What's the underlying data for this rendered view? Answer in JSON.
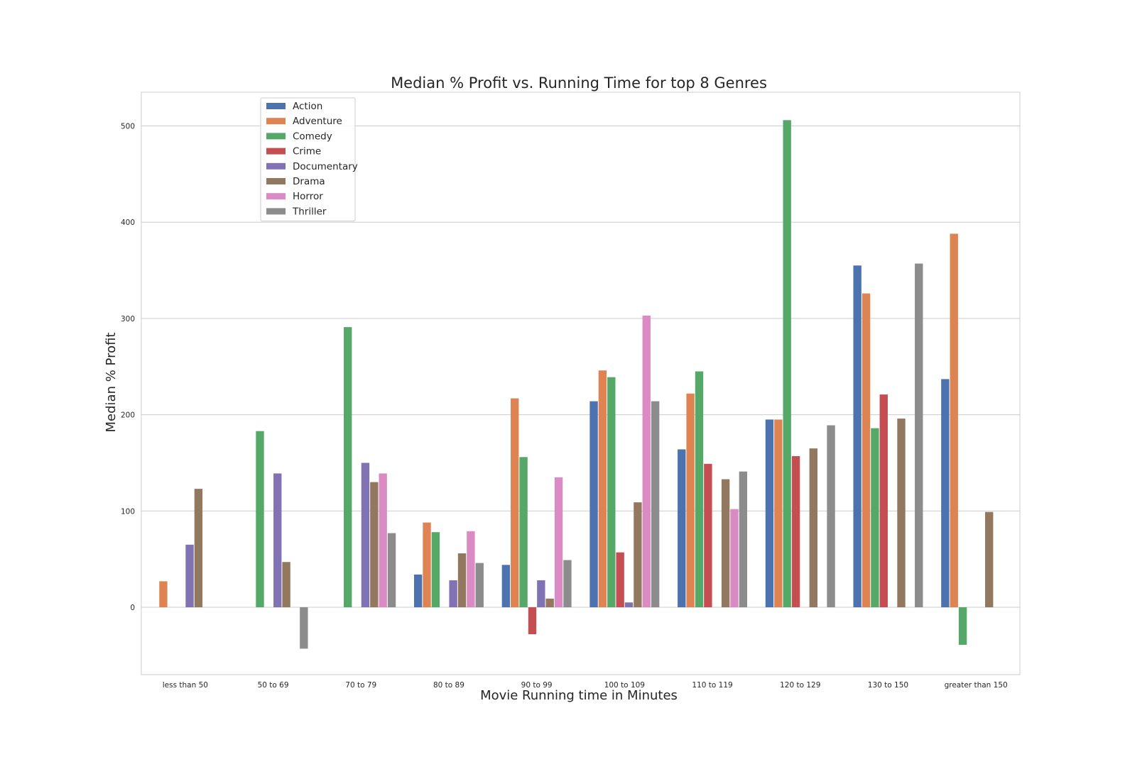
{
  "chart_data": {
    "type": "bar",
    "title": "Median % Profit vs. Running Time for top 8 Genres",
    "xlabel": "Movie Running time in Minutes",
    "ylabel": "Median % Profit",
    "ylim": [
      -70,
      535
    ],
    "yticks": [
      0,
      100,
      200,
      300,
      400,
      500
    ],
    "grid": true,
    "legend_position": "upper-left",
    "categories": [
      "less than 50",
      "50 to 69",
      "70 to 79",
      "80 to 89",
      "90 to 99",
      "100 to 109",
      "110 to 119",
      "120 to 129",
      "130 to 150",
      "greater than 150"
    ],
    "series": [
      {
        "name": "Action",
        "color": "#4c72b0",
        "values": [
          null,
          null,
          null,
          34,
          44,
          214,
          164,
          195,
          355,
          237
        ]
      },
      {
        "name": "Adventure",
        "color": "#dd8452",
        "values": [
          27,
          null,
          null,
          88,
          217,
          246,
          222,
          195,
          326,
          388
        ]
      },
      {
        "name": "Comedy",
        "color": "#55a868",
        "values": [
          null,
          183,
          291,
          78,
          156,
          239,
          245,
          506,
          186,
          -39
        ]
      },
      {
        "name": "Crime",
        "color": "#c44e52",
        "values": [
          null,
          null,
          null,
          null,
          -28,
          57,
          149,
          157,
          221,
          null
        ]
      },
      {
        "name": "Documentary",
        "color": "#8172b3",
        "values": [
          65,
          139,
          150,
          28,
          28,
          5,
          null,
          null,
          null,
          null
        ]
      },
      {
        "name": "Drama",
        "color": "#937860",
        "values": [
          123,
          47,
          130,
          56,
          9,
          109,
          133,
          165,
          196,
          99
        ]
      },
      {
        "name": "Horror",
        "color": "#da8bc3",
        "values": [
          null,
          null,
          139,
          79,
          135,
          303,
          102,
          null,
          null,
          null
        ]
      },
      {
        "name": "Thriller",
        "color": "#8c8c8c",
        "values": [
          null,
          -43,
          77,
          46,
          49,
          214,
          141,
          189,
          357,
          null
        ]
      }
    ]
  }
}
